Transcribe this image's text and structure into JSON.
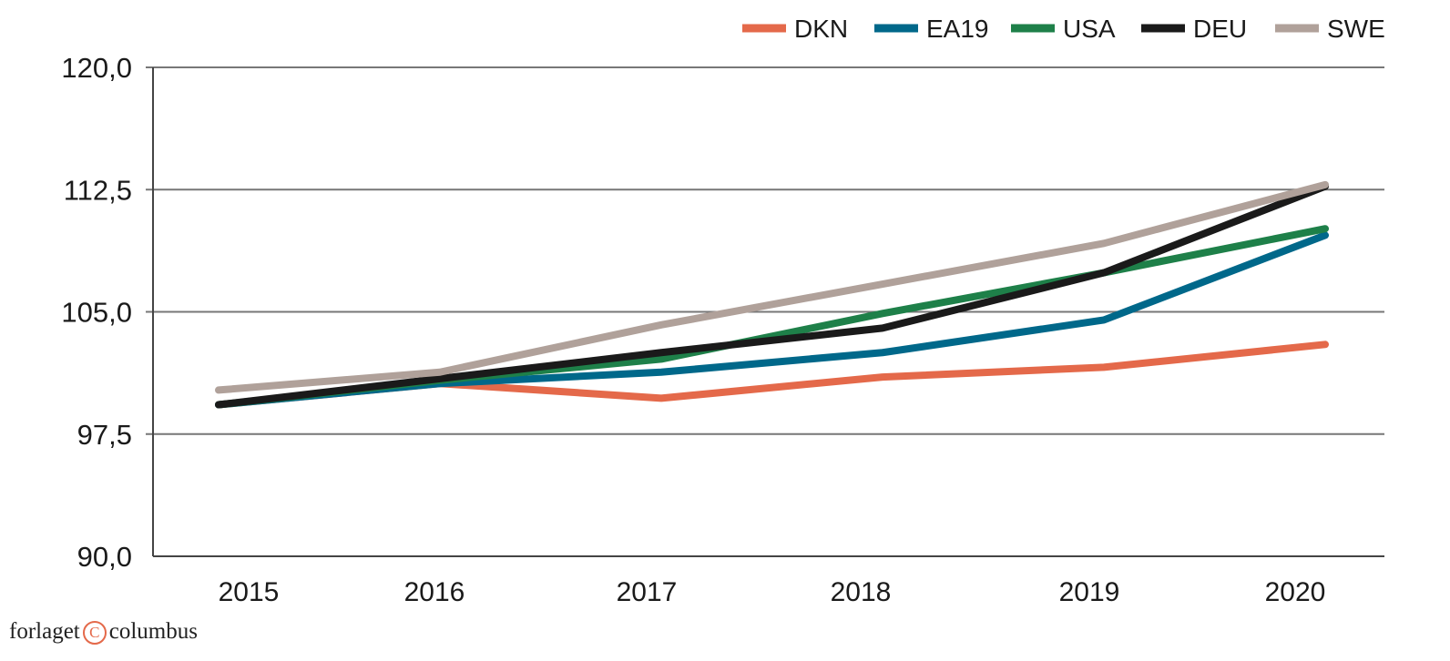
{
  "chart_data": {
    "type": "line",
    "title": "",
    "xlabel": "",
    "ylabel": "",
    "x": [
      2015,
      2016,
      2017,
      2018,
      2019,
      2020
    ],
    "x_tick_labels": [
      "2015",
      "2016",
      "2017",
      "2018",
      "2019",
      "2020"
    ],
    "y_ticks": [
      90.0,
      97.5,
      105.0,
      112.5,
      120.0
    ],
    "y_tick_labels": [
      "90,0",
      "97,5",
      "105,0",
      "112,5",
      "120,0"
    ],
    "ylim": [
      90,
      120
    ],
    "grid": "horizontal",
    "legend_placement": "top-right",
    "series": [
      {
        "name": "DKN",
        "color": "#e4694a",
        "values": [
          99.3,
          100.6,
          99.7,
          101.0,
          101.6,
          103.0
        ]
      },
      {
        "name": "EA19",
        "color": "#00688a",
        "values": [
          99.3,
          100.6,
          101.3,
          102.5,
          104.5,
          109.7
        ]
      },
      {
        "name": "USA",
        "color": "#1e8049",
        "values": [
          99.3,
          100.8,
          102.1,
          104.9,
          107.4,
          110.1
        ]
      },
      {
        "name": "DEU",
        "color": "#1a1a1a",
        "values": [
          99.3,
          100.9,
          102.5,
          104.0,
          107.4,
          112.7
        ]
      },
      {
        "name": "SWE",
        "color": "#b0a19a",
        "values": [
          100.2,
          101.3,
          104.2,
          106.7,
          109.2,
          112.8
        ]
      }
    ]
  },
  "logo": {
    "left": "forlaget",
    "symbol": "C",
    "right": "columbus"
  }
}
